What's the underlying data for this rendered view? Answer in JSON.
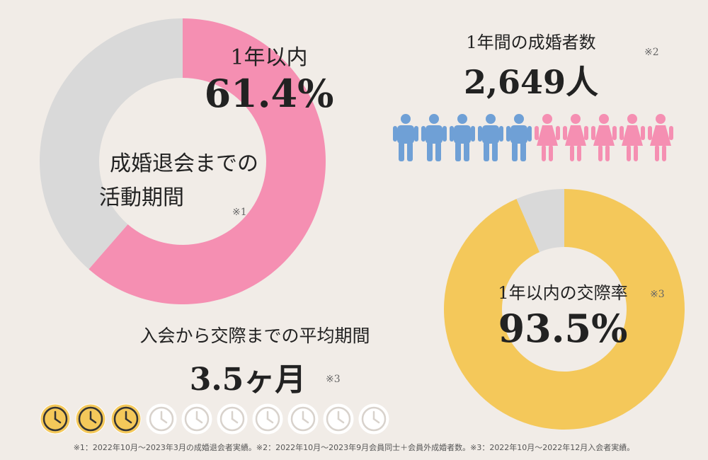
{
  "colors": {
    "pink": "#f58fb2",
    "gray": "#d9d9d9",
    "yellow": "#f4c85a",
    "blue": "#6fa0d6",
    "background": "#f1ece7"
  },
  "activity": {
    "label": "1年以内",
    "value": "61.4%",
    "center_line1": "成婚退会までの",
    "center_line2": "活動期間",
    "note": "※1"
  },
  "marriages": {
    "title": "1年間の成婚者数",
    "value": "2,649人",
    "note": "※2",
    "icons": [
      "male-icon",
      "male-icon",
      "male-icon",
      "male-icon",
      "male-icon",
      "female-icon",
      "female-icon",
      "female-icon",
      "female-icon",
      "female-icon"
    ]
  },
  "dating_rate": {
    "label": "1年以内の交際率",
    "value": "93.5%",
    "note": "※3"
  },
  "avg_period": {
    "title": "入会から交際までの平均期間",
    "value": "3.5ヶ月",
    "note": "※3",
    "clocks_filled": 3.5,
    "clocks_total": 10
  },
  "footnote": "※1：2022年10月～2023年3月の成婚退会者実績。※2：2022年10月～2023年9月会員同士＋会員外成婚者数。※3：2022年10月～2022年12月入会者実績。",
  "chart_data": [
    {
      "type": "pie",
      "title": "成婚退会までの活動期間",
      "categories": [
        "1年以内",
        ""
      ],
      "values": [
        61.4,
        38.6
      ]
    },
    {
      "type": "pie",
      "title": "1年以内の交際率",
      "categories": [
        "1年以内の交際率",
        ""
      ],
      "values": [
        93.5,
        6.5
      ]
    }
  ]
}
